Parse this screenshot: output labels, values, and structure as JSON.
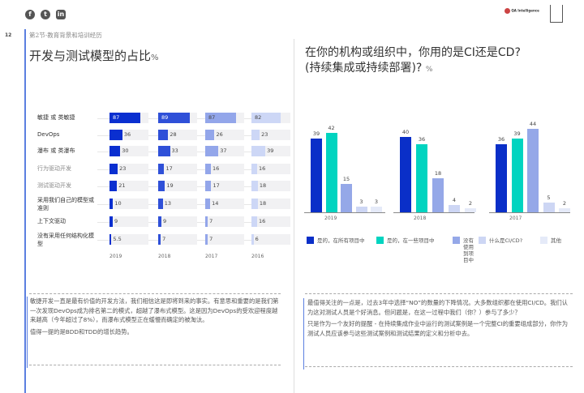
{
  "header": {
    "social": [
      "f",
      "t",
      "in"
    ],
    "logo_text": "QA Intelligence",
    "page_number": "12",
    "section": "第2节-教育背景和培训经历"
  },
  "left": {
    "title": "开发与测试模型的占比",
    "title_unit": "%",
    "chart_data": {
      "type": "bar",
      "title": "开发与测试模型的占比%",
      "categories": [
        "敏捷 或 类敏捷",
        "DevOps",
        "瀑布 或 类瀑布",
        "行为驱动开发",
        "测试驱动开发",
        "采用我们自己的模型或准则",
        "上下文驱动",
        "没有采用任何结构化模型"
      ],
      "series": [
        {
          "name": "2019",
          "values": [
            87,
            36,
            30,
            23,
            21,
            10,
            9,
            5.5
          ],
          "color": "#0a2fd0"
        },
        {
          "name": "2018",
          "values": [
            89,
            28,
            33,
            17,
            19,
            13,
            9,
            7
          ],
          "color": "#2f50d8"
        },
        {
          "name": "2017",
          "values": [
            87,
            26,
            37,
            16,
            17,
            14,
            7,
            7
          ],
          "color": "#93a6ea"
        },
        {
          "name": "2016",
          "values": [
            82,
            23,
            39,
            16,
            18,
            18,
            16,
            6
          ],
          "color": "#cdd7f6"
        }
      ],
      "xlim": [
        0,
        100
      ]
    },
    "text": [
      "敏捷开发一直是最有价值的开发方法，我们相信这是即将到来的事实。有意思和重要的是我们第一次发现DevOps成为排名第二的模式，超越了瀑布式模型。这是因为DevOps的受欢迎程度越来越高（今年超过了8%），而瀑布式模型正在缓慢而确定的被淘汰。",
      "值得一提的是BDD和TDD的增长趋势。"
    ]
  },
  "right": {
    "title_line1": "在你的机构或组织中，你用的是CI还是CD?",
    "title_line2": "(持续集成或持续部署)?",
    "title_unit": "%",
    "chart_data": {
      "type": "bar",
      "categories": [
        "2019",
        "2018",
        "2017"
      ],
      "series": [
        {
          "name": "是的，在所有项目中",
          "values": [
            39,
            40,
            36
          ],
          "color": "#0a2fc8"
        },
        {
          "name": "是的，在一些项目中",
          "values": [
            42,
            36,
            39
          ],
          "color": "#00d4c0"
        },
        {
          "name": "没有使用到项目中",
          "values": [
            15,
            18,
            44
          ],
          "color": "#95a8e8"
        },
        {
          "name": "什么是CI/CD?",
          "values": [
            3,
            4,
            5
          ],
          "color": "#cdd6f4"
        },
        {
          "name": "其他",
          "values": [
            3,
            2,
            2
          ],
          "color": "#e5eaf8"
        }
      ],
      "ylim": [
        0,
        45
      ]
    },
    "text": [
      "最值得关注的一点是，过去3年中选择“NO”的数量的下降情况。大多数组织都在使用CI/CD。我们认为这对测试人员是个好消息。但问题是，在这一过程中我们（你？）参与了多少？",
      "只是作为一个友好的提醒 -  在持续集成作业中运行的测试案例是一个完整CI的重要组成部分，你作为测试人员应该参与这些测试案例和测试结果的定义和分析中去。"
    ]
  }
}
